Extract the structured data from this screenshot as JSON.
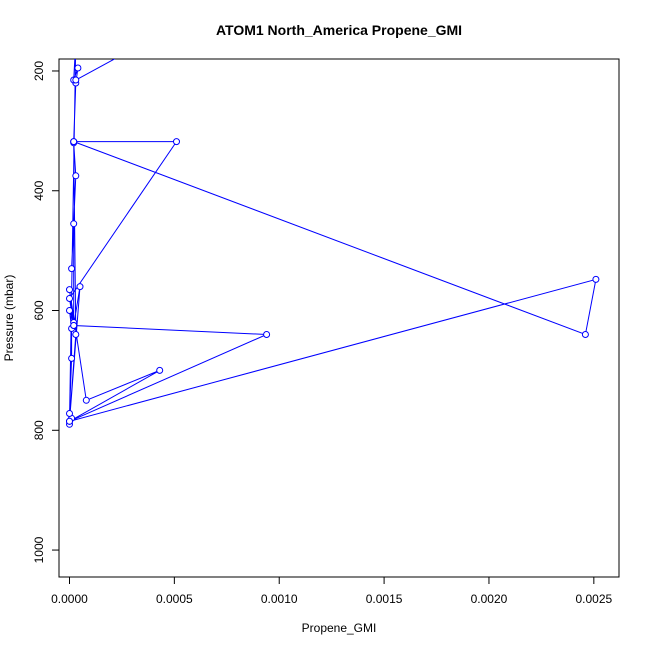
{
  "chart_data": {
    "type": "line",
    "title": "ATOM1 North_America Propene_GMI",
    "xlabel": "Propene_GMI",
    "ylabel": "Pressure (mbar)",
    "xlim": [
      -5e-05,
      0.00262
    ],
    "ylim": [
      1045,
      180
    ],
    "y_reversed": true,
    "x_ticks": [
      0.0,
      0.0005,
      0.001,
      0.0015,
      0.002,
      0.0025
    ],
    "x_tick_labels": [
      "0.0000",
      "0.0005",
      "0.0010",
      "0.0015",
      "0.0020",
      "0.0025"
    ],
    "y_ticks": [
      200,
      400,
      600,
      800,
      1000
    ],
    "y_tick_labels": [
      "200",
      "400",
      "600",
      "800",
      "1000"
    ],
    "grid": false,
    "series": [
      {
        "color": "#0000ff",
        "x": [
          0.0,
          1e-05,
          0.0,
          1e-05,
          1e-05,
          0.0,
          2e-05,
          2e-05,
          1e-05,
          3e-05,
          2e-05,
          3e-05,
          4e-05,
          2e-05,
          3e-05,
          0.0,
          5e-05,
          2e-05,
          0.0,
          8e-05,
          0.00043,
          0.0,
          0.00094,
          2e-05,
          0.0,
          0.00051,
          2e-05,
          0.00246,
          0.00251,
          0.0,
          3e-05,
          2e-05,
          3e-05,
          0.00032
        ],
        "y": [
          790,
          780,
          772,
          680,
          630,
          600,
          620,
          455,
          530,
          375,
          320,
          220,
          195,
          215,
          150,
          785,
          560,
          625,
          565,
          750,
          700,
          785,
          640,
          625,
          580,
          318,
          318,
          640,
          548,
          785,
          640,
          318,
          215,
          160
        ]
      }
    ]
  }
}
